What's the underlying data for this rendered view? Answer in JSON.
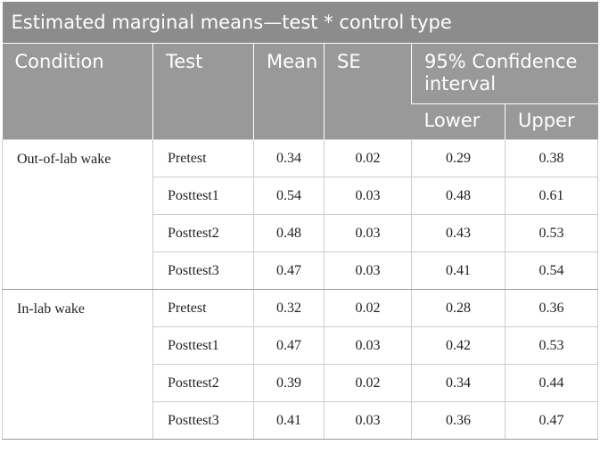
{
  "title": "Estimated marginal means—test * control type",
  "headers": {
    "condition": "Condition",
    "test": "Test",
    "mean": "Mean",
    "se": "SE",
    "ci": "95% Confidence interval",
    "lower": "Lower",
    "upper": "Upper"
  },
  "groups": [
    {
      "condition": "Out-of-lab wake",
      "rows": [
        {
          "test": "Pretest",
          "mean": "0.34",
          "se": "0.02",
          "lower": "0.29",
          "upper": "0.38"
        },
        {
          "test": "Posttest1",
          "mean": "0.54",
          "se": "0.03",
          "lower": "0.48",
          "upper": "0.61"
        },
        {
          "test": "Posttest2",
          "mean": "0.48",
          "se": "0.03",
          "lower": "0.43",
          "upper": "0.53"
        },
        {
          "test": "Posttest3",
          "mean": "0.47",
          "se": "0.03",
          "lower": "0.41",
          "upper": "0.54"
        }
      ]
    },
    {
      "condition": "In-lab wake",
      "rows": [
        {
          "test": "Pretest",
          "mean": "0.32",
          "se": "0.02",
          "lower": "0.28",
          "upper": "0.36"
        },
        {
          "test": "Posttest1",
          "mean": "0.47",
          "se": "0.03",
          "lower": "0.42",
          "upper": "0.53"
        },
        {
          "test": "Posttest2",
          "mean": "0.39",
          "se": "0.02",
          "lower": "0.34",
          "upper": "0.44"
        },
        {
          "test": "Posttest3",
          "mean": "0.41",
          "se": "0.03",
          "lower": "0.36",
          "upper": "0.47"
        }
      ]
    }
  ]
}
